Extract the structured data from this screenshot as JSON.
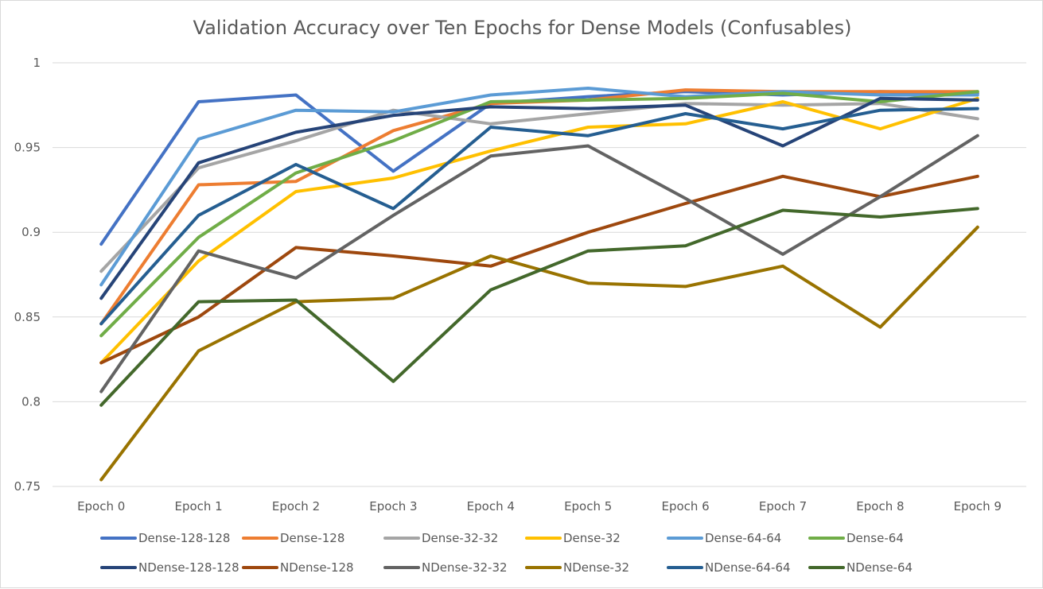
{
  "chart_data": {
    "type": "line",
    "title": "Validation Accuracy over Ten Epochs for Dense Models (Confusables)",
    "xlabel": "",
    "ylabel": "",
    "categories": [
      "Epoch 0",
      "Epoch 1",
      "Epoch 2",
      "Epoch 3",
      "Epoch 4",
      "Epoch 5",
      "Epoch 6",
      "Epoch 7",
      "Epoch 8",
      "Epoch 9"
    ],
    "ylim": [
      0.75,
      1
    ],
    "yticks": [
      "0.75",
      "0.8",
      "0.85",
      "0.9",
      "0.95",
      "1"
    ],
    "grid": true,
    "legend_position": "bottom",
    "series": [
      {
        "name": "Dense-128-128",
        "color": "#4472C4",
        "values": [
          0.893,
          0.977,
          0.981,
          0.936,
          0.976,
          0.98,
          0.983,
          0.981,
          0.983,
          0.982
        ]
      },
      {
        "name": "Dense-128",
        "color": "#ED7D31",
        "values": [
          0.846,
          0.928,
          0.93,
          0.96,
          0.976,
          0.978,
          0.984,
          0.983,
          0.983,
          0.983
        ]
      },
      {
        "name": "Dense-32-32",
        "color": "#A5A5A5",
        "values": [
          0.877,
          0.938,
          0.954,
          0.972,
          0.964,
          0.97,
          0.976,
          0.975,
          0.976,
          0.967
        ]
      },
      {
        "name": "Dense-32",
        "color": "#FFC000",
        "values": [
          0.823,
          0.883,
          0.924,
          0.932,
          0.948,
          0.962,
          0.964,
          0.977,
          0.961,
          0.979
        ]
      },
      {
        "name": "Dense-64-64",
        "color": "#5B9BD5",
        "values": [
          0.869,
          0.955,
          0.972,
          0.971,
          0.981,
          0.985,
          0.98,
          0.983,
          0.981,
          0.981
        ]
      },
      {
        "name": "Dense-64",
        "color": "#70AD47",
        "values": [
          0.839,
          0.897,
          0.935,
          0.954,
          0.977,
          0.978,
          0.979,
          0.982,
          0.977,
          0.983
        ]
      },
      {
        "name": "NDense-128-128",
        "color": "#264478",
        "values": [
          0.861,
          0.941,
          0.959,
          0.969,
          0.974,
          0.973,
          0.975,
          0.951,
          0.979,
          0.978
        ]
      },
      {
        "name": "NDense-128",
        "color": "#9E480E",
        "values": [
          0.823,
          0.85,
          0.891,
          0.886,
          0.88,
          0.9,
          0.917,
          0.933,
          0.921,
          0.933
        ]
      },
      {
        "name": "NDense-32-32",
        "color": "#636363",
        "values": [
          0.806,
          0.889,
          0.873,
          0.91,
          0.945,
          0.951,
          0.92,
          0.887,
          0.921,
          0.957
        ]
      },
      {
        "name": "NDense-32",
        "color": "#997300",
        "values": [
          0.754,
          0.83,
          0.859,
          0.861,
          0.886,
          0.87,
          0.868,
          0.88,
          0.844,
          0.903
        ]
      },
      {
        "name": "NDense-64-64",
        "color": "#255E91",
        "values": [
          0.846,
          0.91,
          0.94,
          0.914,
          0.962,
          0.957,
          0.97,
          0.961,
          0.972,
          0.973
        ]
      },
      {
        "name": "NDense-64",
        "color": "#43682B",
        "values": [
          0.798,
          0.859,
          0.86,
          0.812,
          0.866,
          0.889,
          0.892,
          0.913,
          0.909,
          0.914
        ]
      }
    ]
  }
}
